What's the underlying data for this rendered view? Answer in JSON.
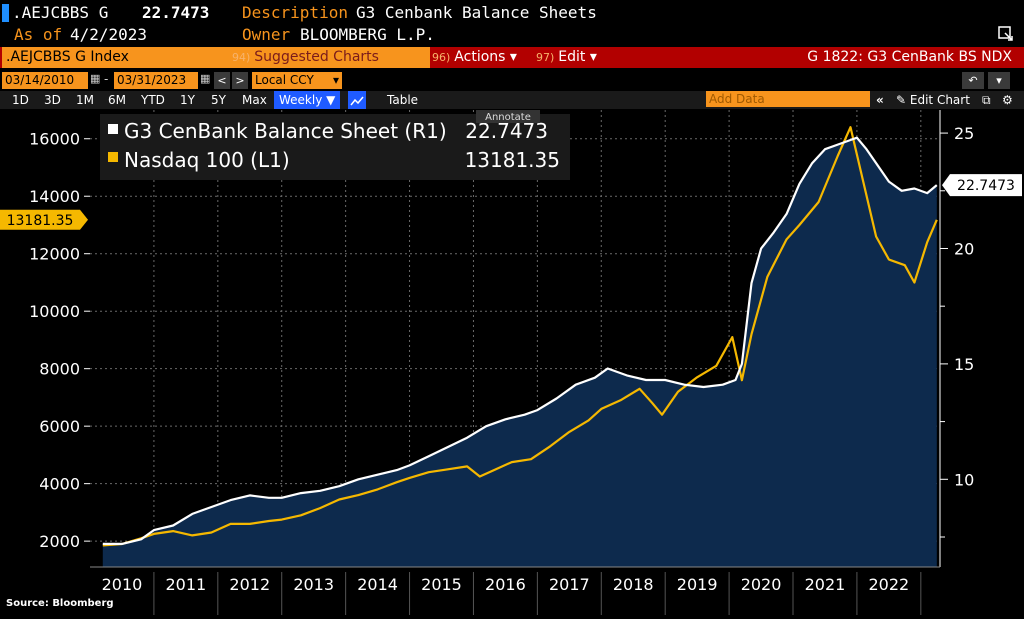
{
  "header": {
    "ticker": ".AEJCBBS G",
    "last_value": "22.7473",
    "description_label": "Description",
    "description": "G3 Cenbank Balance Sheets",
    "asof_label": "As of",
    "asof": "4/2/2023",
    "owner_label": "Owner",
    "owner": "BLOOMBERG L.P."
  },
  "menubar": {
    "security": ".AEJCBBS G Index",
    "suggested_num": "94)",
    "suggested": "Suggested Charts",
    "actions_num": "96)",
    "actions": "Actions",
    "edit_num": "97)",
    "edit": "Edit",
    "chart_title": "G 1822: G3 CenBank BS NDX"
  },
  "datebar": {
    "start": "03/14/2010",
    "end": "03/31/2023",
    "currency": "Local CCY"
  },
  "rangebar": {
    "ranges": [
      "1D",
      "3D",
      "1M",
      "6M",
      "YTD",
      "1Y",
      "5Y",
      "Max"
    ],
    "frequency": "Weekly",
    "table": "Table",
    "add_data": "Add Data",
    "edit_chart": "Edit Chart",
    "annotate": "Annotate"
  },
  "legend": {
    "s1_name": "G3 CenBank Balance Sheet (R1)",
    "s1_value": "22.7473",
    "s2_name": "Nasdaq 100 (L1)",
    "s2_value": "13181.35"
  },
  "footer": {
    "source": "Source: Bloomberg"
  },
  "colors": {
    "balance_sheet": "#ffffff",
    "nasdaq": "#f5b800",
    "area_fill": "#0d2a4d",
    "menu_red": "#b20000",
    "bloomberg_orange": "#f7941d"
  },
  "chart_data": {
    "type": "line",
    "title": "",
    "xlabel": "",
    "left_axis": {
      "ticks": [
        2000,
        4000,
        6000,
        8000,
        10000,
        12000,
        14000,
        16000
      ],
      "range": [
        1100,
        17000
      ],
      "last_label": "13181.35"
    },
    "right_axis": {
      "ticks": [
        10,
        15,
        20,
        25
      ],
      "range": [
        6.2,
        26.0
      ],
      "last_label": "22.7473"
    },
    "x_ticks": [
      "2010",
      "2011",
      "2012",
      "2013",
      "2014",
      "2015",
      "2016",
      "2017",
      "2018",
      "2019",
      "2020",
      "2021",
      "2022"
    ],
    "x_range": [
      2010.0,
      2023.3
    ],
    "grid": true,
    "series": [
      {
        "name": "G3 CenBank Balance Sheet (R1)",
        "axis": "right",
        "x": [
          2010.2,
          2010.5,
          2010.8,
          2011.0,
          2011.3,
          2011.6,
          2011.9,
          2012.2,
          2012.5,
          2012.8,
          2013.0,
          2013.3,
          2013.6,
          2013.9,
          2014.2,
          2014.5,
          2014.8,
          2015.0,
          2015.3,
          2015.6,
          2015.9,
          2016.2,
          2016.5,
          2016.8,
          2017.0,
          2017.3,
          2017.6,
          2017.9,
          2018.1,
          2018.4,
          2018.7,
          2019.0,
          2019.3,
          2019.6,
          2019.9,
          2020.1,
          2020.2,
          2020.35,
          2020.5,
          2020.7,
          2020.9,
          2021.1,
          2021.3,
          2021.5,
          2021.7,
          2021.9,
          2022.0,
          2022.15,
          2022.3,
          2022.5,
          2022.7,
          2022.9,
          2023.1,
          2023.25
        ],
        "values": [
          7.2,
          7.2,
          7.4,
          7.8,
          8.0,
          8.5,
          8.8,
          9.1,
          9.3,
          9.2,
          9.2,
          9.4,
          9.5,
          9.7,
          10.0,
          10.2,
          10.4,
          10.6,
          11.0,
          11.4,
          11.8,
          12.3,
          12.6,
          12.8,
          13.0,
          13.5,
          14.1,
          14.4,
          14.8,
          14.5,
          14.3,
          14.3,
          14.1,
          14.0,
          14.1,
          14.3,
          15.0,
          18.5,
          20.0,
          20.7,
          21.5,
          22.8,
          23.7,
          24.3,
          24.5,
          24.7,
          24.8,
          24.3,
          23.7,
          22.9,
          22.5,
          22.6,
          22.4,
          22.7473
        ]
      },
      {
        "name": "Nasdaq 100 (L1)",
        "axis": "left",
        "x": [
          2010.2,
          2010.5,
          2010.8,
          2011.0,
          2011.3,
          2011.6,
          2011.9,
          2012.2,
          2012.5,
          2012.8,
          2013.0,
          2013.3,
          2013.6,
          2013.9,
          2014.2,
          2014.5,
          2014.8,
          2015.0,
          2015.3,
          2015.6,
          2015.9,
          2016.1,
          2016.3,
          2016.6,
          2016.9,
          2017.2,
          2017.5,
          2017.8,
          2018.0,
          2018.3,
          2018.6,
          2018.8,
          2018.95,
          2019.2,
          2019.5,
          2019.8,
          2020.05,
          2020.2,
          2020.35,
          2020.6,
          2020.9,
          2021.1,
          2021.4,
          2021.7,
          2021.9,
          2022.1,
          2022.3,
          2022.5,
          2022.75,
          2022.9,
          2023.1,
          2023.25
        ],
        "values": [
          1850,
          1900,
          2100,
          2250,
          2350,
          2200,
          2300,
          2600,
          2600,
          2700,
          2750,
          2900,
          3150,
          3450,
          3600,
          3800,
          4050,
          4200,
          4400,
          4500,
          4600,
          4250,
          4450,
          4750,
          4850,
          5300,
          5800,
          6200,
          6600,
          6900,
          7300,
          6800,
          6400,
          7200,
          7700,
          8100,
          9100,
          7600,
          9200,
          11200,
          12500,
          13000,
          13800,
          15400,
          16400,
          14500,
          12600,
          11800,
          11600,
          11000,
          12400,
          13181.35
        ]
      }
    ]
  }
}
